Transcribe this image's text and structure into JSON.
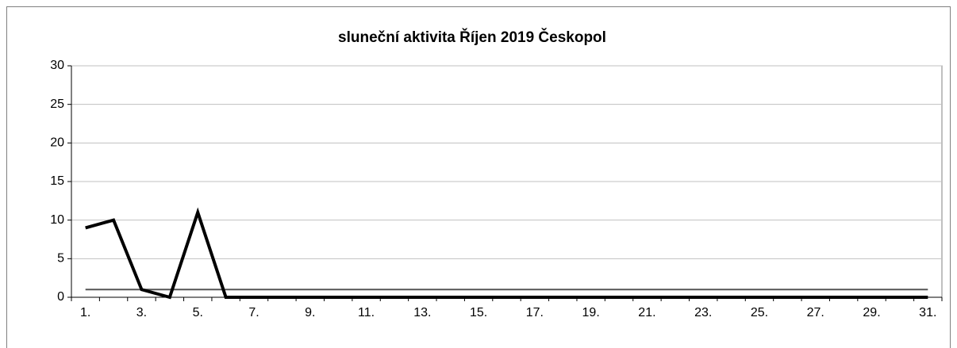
{
  "chart_data": {
    "type": "line",
    "title": "sluneční aktivita Říjen 2019 Českopol",
    "categories": [
      "1.",
      null,
      "3.",
      null,
      "5.",
      null,
      "7.",
      null,
      "9.",
      null,
      "11.",
      null,
      "13.",
      null,
      "15.",
      null,
      "17.",
      null,
      "19.",
      null,
      "21.",
      null,
      "23.",
      null,
      "25.",
      null,
      "27.",
      null,
      "29.",
      null,
      "31."
    ],
    "series": [
      {
        "color": "#000000",
        "values": [
          9,
          10,
          1,
          0,
          11,
          0,
          0,
          0,
          0,
          0,
          0,
          0,
          0,
          0,
          0,
          0,
          0,
          0,
          0,
          0,
          0,
          0,
          0,
          0,
          0,
          0,
          0,
          0,
          0,
          0,
          0
        ]
      },
      {
        "color": "#555555",
        "values": [
          1,
          1,
          1,
          1,
          1,
          1,
          1,
          1,
          1,
          1,
          1,
          1,
          1,
          1,
          1,
          1,
          1,
          1,
          1,
          1,
          1,
          1,
          1,
          1,
          1,
          1,
          1,
          1,
          1,
          1,
          1
        ]
      }
    ],
    "ylim": [
      0,
      30
    ],
    "yticks": [
      0,
      5,
      10,
      15,
      20,
      25,
      30
    ],
    "grid": true
  }
}
